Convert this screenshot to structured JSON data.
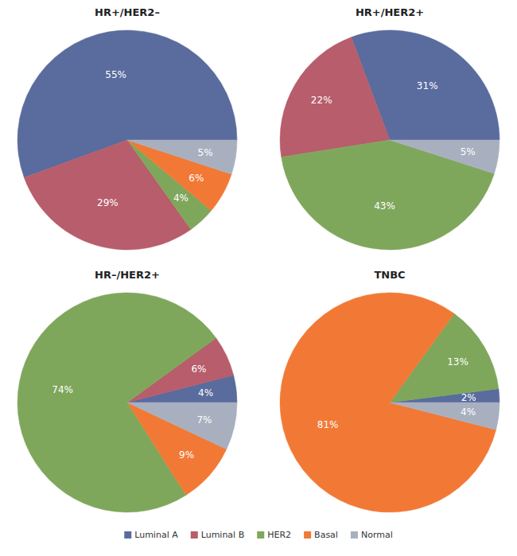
{
  "chart_data": [
    {
      "type": "pie",
      "title": "HR+/HER2–",
      "categories": [
        "Luminal A",
        "Luminal B",
        "HER2",
        "Basal",
        "Normal"
      ],
      "values": [
        55,
        29,
        4,
        6,
        5
      ],
      "value_labels": [
        "55%",
        "29%",
        "4%",
        "6%",
        "5%"
      ],
      "colors": [
        "#5a6b9e",
        "#b75d6b",
        "#7fa75b",
        "#f27935",
        "#a8b0c0"
      ],
      "data_labels": true,
      "legend": "bottom"
    },
    {
      "type": "pie",
      "title": "HR+/HER2+",
      "categories": [
        "Luminal A",
        "Luminal B",
        "HER2",
        "Normal"
      ],
      "values": [
        31,
        22,
        43,
        5
      ],
      "value_labels": [
        "31%",
        "22%",
        "43%",
        "5%"
      ],
      "colors": [
        "#5a6b9e",
        "#b75d6b",
        "#7fa75b",
        "#a8b0c0"
      ],
      "data_labels": true
    },
    {
      "type": "pie",
      "title": "HR–/HER2+",
      "categories": [
        "Luminal A",
        "Luminal B",
        "HER2",
        "Basal",
        "Normal"
      ],
      "values": [
        4,
        6,
        74,
        9,
        7
      ],
      "value_labels": [
        "4%",
        "6%",
        "74%",
        "9%",
        "7%"
      ],
      "colors": [
        "#5a6b9e",
        "#b75d6b",
        "#7fa75b",
        "#f27935",
        "#a8b0c0"
      ],
      "data_labels": true
    },
    {
      "type": "pie",
      "title": "TNBC",
      "categories": [
        "Luminal A",
        "HER2",
        "Basal",
        "Normal"
      ],
      "values": [
        2,
        13,
        81,
        4
      ],
      "value_labels": [
        "2%",
        "13%",
        "81%",
        "4%"
      ],
      "colors": [
        "#5a6b9e",
        "#7fa75b",
        "#f27935",
        "#a8b0c0"
      ],
      "data_labels": true
    }
  ]
}
